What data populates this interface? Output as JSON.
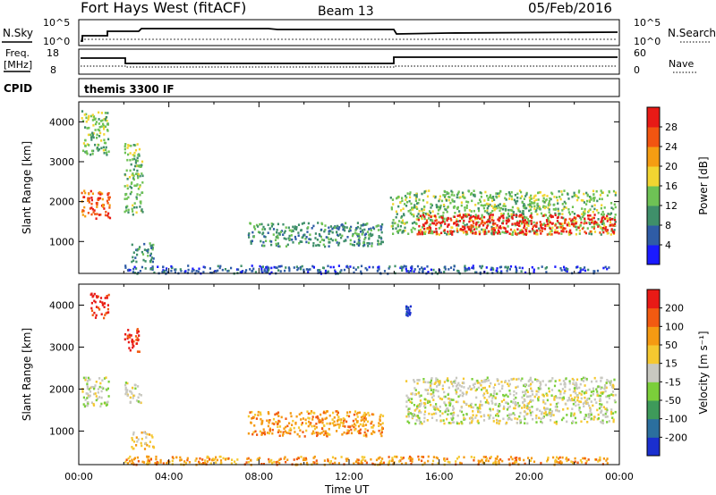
{
  "header": {
    "station": "Fort Hays West (fitACF)",
    "beam": "Beam 13",
    "date": "05/Feb/2016"
  },
  "strips": {
    "nsky_label": "N.Sky",
    "nsearch_label": "N.Search",
    "log_top": "10^5",
    "log_bottom": "10^0",
    "freq_label_1": "Freq.",
    "freq_label_2": "[MHz]",
    "freq_top": "18",
    "freq_bottom": "8",
    "nave_label": "Nave",
    "nave_top": "60",
    "nave_bottom": "0",
    "cpid_label": "CPID",
    "cpid_value": "themis 3300 IF"
  },
  "chart_data": [
    {
      "type": "heatmap",
      "title": "",
      "ylabel": "Slant Range [km]",
      "xlabel": "",
      "xlim": [
        0,
        24
      ],
      "ylim": [
        200,
        4500
      ],
      "yticks": [
        1000,
        2000,
        3000,
        4000
      ],
      "colorbar": {
        "label": "Power [dB]",
        "ticks": [
          "4",
          "8",
          "12",
          "16",
          "20",
          "24",
          "28"
        ],
        "colors": [
          "#1a1aff",
          "#2f5ca6",
          "#3f8f6a",
          "#6ec255",
          "#f2d531",
          "#f59d12",
          "#f25511",
          "#e81a16"
        ]
      },
      "regions": [
        {
          "t0": 0.1,
          "t1": 1.4,
          "r0": 1600,
          "r1": 2300,
          "level": 6
        },
        {
          "t0": 0.1,
          "t1": 1.3,
          "r0": 3200,
          "r1": 4300,
          "level": 3
        },
        {
          "t0": 2.0,
          "t1": 2.8,
          "r0": 1700,
          "r1": 3500,
          "level": 3
        },
        {
          "t0": 2.3,
          "t1": 3.3,
          "r0": 500,
          "r1": 1000,
          "level": 2
        },
        {
          "t0": 7.5,
          "t1": 13.5,
          "r0": 900,
          "r1": 1500,
          "level": 2
        },
        {
          "t0": 13.8,
          "t1": 14.5,
          "r0": 1200,
          "r1": 2200,
          "level": 3
        },
        {
          "t0": 14.5,
          "t1": 23.8,
          "r0": 1200,
          "r1": 2300,
          "level": 3
        },
        {
          "t0": 15.0,
          "t1": 23.8,
          "r0": 1200,
          "r1": 1700,
          "level": 7
        },
        {
          "t0": 2.0,
          "t1": 23.5,
          "r0": 220,
          "r1": 420,
          "level": 1
        }
      ]
    },
    {
      "type": "heatmap",
      "title": "",
      "ylabel": "Slant Range [km]",
      "xlabel": "Time UT",
      "xlim": [
        0,
        24
      ],
      "ylim": [
        200,
        4500
      ],
      "yticks": [
        1000,
        2000,
        3000,
        4000
      ],
      "xticks": [
        "00:00",
        "04:00",
        "08:00",
        "12:00",
        "16:00",
        "20:00",
        "00:00"
      ],
      "colorbar": {
        "label": "Velocity [m s⁻¹]",
        "ticks": [
          "200",
          "100",
          "50",
          "15",
          "-15",
          "-50",
          "-100",
          "-200"
        ],
        "colors": [
          "#1a2fcf",
          "#2b6f9e",
          "#3e9a5a",
          "#7bcf3a",
          "#c8c8c0",
          "#f5c830",
          "#f59a12",
          "#f25a11",
          "#e81a16"
        ]
      },
      "regions": [
        {
          "t0": 0.1,
          "t1": 1.3,
          "r0": 1600,
          "r1": 2300,
          "level": 4
        },
        {
          "t0": 0.5,
          "t1": 1.3,
          "r0": 3700,
          "r1": 4300,
          "level": 8
        },
        {
          "t0": 2.0,
          "t1": 2.7,
          "r0": 2900,
          "r1": 3500,
          "level": 8
        },
        {
          "t0": 2.0,
          "t1": 2.8,
          "r0": 1700,
          "r1": 2200,
          "level": 4
        },
        {
          "t0": 2.3,
          "t1": 3.3,
          "r0": 600,
          "r1": 1000,
          "level": 5
        },
        {
          "t0": 7.5,
          "t1": 13.5,
          "r0": 900,
          "r1": 1500,
          "level": 6
        },
        {
          "t0": 14.5,
          "t1": 14.7,
          "r0": 3700,
          "r1": 4000,
          "level": 0
        },
        {
          "t0": 14.5,
          "t1": 23.8,
          "r0": 1200,
          "r1": 2300,
          "level": 4
        },
        {
          "t0": 2.0,
          "t1": 23.5,
          "r0": 220,
          "r1": 420,
          "level": 6
        }
      ]
    }
  ],
  "time_axis_label": "Time UT"
}
